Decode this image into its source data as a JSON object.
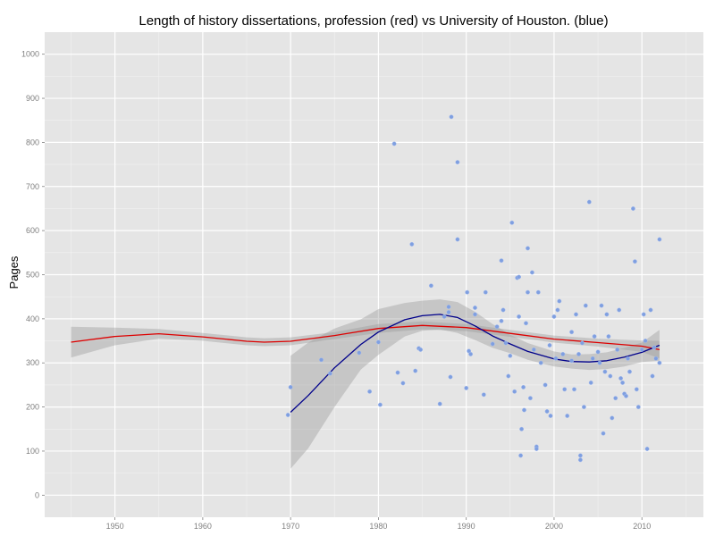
{
  "chart_data": {
    "type": "scatter",
    "title": "Length of history dissertations, profession (red) vs University of Houston. (blue)",
    "xlabel": "",
    "ylabel": "Pages",
    "xlim": [
      1942,
      2017
    ],
    "ylim": [
      -50,
      1050
    ],
    "x_ticks": [
      1950,
      1960,
      1970,
      1980,
      1990,
      2000,
      2010
    ],
    "y_ticks": [
      0,
      100,
      200,
      300,
      400,
      500,
      600,
      700,
      800,
      900,
      1000
    ],
    "grid": true,
    "legend": "none",
    "colors": {
      "panel": "#e5e5e5",
      "grid_major": "#ffffff",
      "grid_minor": "#f2f2f2",
      "points": "#7f9fe0",
      "band": "#999999",
      "profession_line": "#dd0000",
      "houston_line": "#00008b"
    },
    "series": [
      {
        "kind": "points",
        "x": [
          1969.7,
          1970.0,
          1973.5,
          1974.5,
          1977.8,
          1979.0,
          1980.0,
          1980.2,
          1981.8,
          1982.2,
          1982.8,
          1983.8,
          1984.2,
          1984.6,
          1984.8,
          1986.0,
          1987.0,
          1987.5,
          1988.0,
          1988.0,
          1988.2,
          1988.3,
          1989.0,
          1989.0,
          1990.0,
          1990.1,
          1990.3,
          1990.5,
          1991.0,
          1991.0,
          1992.0,
          1992.2,
          1993.0,
          1993.5,
          1994.0,
          1994.0,
          1994.2,
          1994.5,
          1994.8,
          1995.0,
          1995.2,
          1995.5,
          1995.8,
          1996.0,
          1996.0,
          1996.2,
          1996.3,
          1996.5,
          1996.6,
          1996.8,
          1997.0,
          1997.0,
          1997.3,
          1997.5,
          1997.7,
          1998.0,
          1998.0,
          1998.2,
          1998.5,
          1999.0,
          1999.2,
          1999.5,
          1999.6,
          2000.0,
          2000.2,
          2000.4,
          2000.6,
          2001.0,
          2001.2,
          2001.5,
          2002.0,
          2002.0,
          2002.3,
          2002.5,
          2002.8,
          2003.0,
          2003.0,
          2003.2,
          2003.4,
          2003.6,
          2004.0,
          2004.2,
          2004.4,
          2004.6,
          2005.0,
          2005.2,
          2005.4,
          2005.6,
          2005.8,
          2006.0,
          2006.2,
          2006.4,
          2006.6,
          2007.0,
          2007.2,
          2007.4,
          2007.6,
          2007.8,
          2008.0,
          2008.2,
          2008.4,
          2008.6,
          2009.0,
          2009.2,
          2009.4,
          2009.6,
          2010.0,
          2010.2,
          2010.4,
          2010.6,
          2011.0,
          2011.2,
          2011.4,
          2011.6,
          2012.0,
          2012.0
        ],
        "y": [
          182,
          245,
          307,
          276,
          323,
          235,
          347,
          205,
          797,
          278,
          254,
          569,
          282,
          333,
          330,
          475,
          207,
          405,
          427,
          415,
          268,
          858,
          755,
          580,
          243,
          460,
          327,
          320,
          425,
          410,
          228,
          460,
          343,
          382,
          395,
          532,
          420,
          345,
          270,
          316,
          618,
          235,
          493,
          405,
          495,
          90,
          150,
          245,
          193,
          390,
          560,
          460,
          220,
          505,
          330,
          110,
          105,
          460,
          300,
          250,
          190,
          340,
          180,
          405,
          310,
          420,
          440,
          320,
          240,
          180,
          305,
          370,
          240,
          410,
          320,
          80,
          90,
          345,
          200,
          430,
          665,
          255,
          310,
          360,
          325,
          300,
          430,
          140,
          280,
          410,
          360,
          270,
          175,
          220,
          330,
          420,
          265,
          255,
          230,
          225,
          310,
          280,
          650,
          530,
          240,
          200,
          330,
          410,
          350,
          105,
          420,
          270,
          335,
          310,
          580,
          300
        ],
        "color": "#7f9fe0"
      },
      {
        "kind": "smooth",
        "x": [
          1945,
          1950,
          1955,
          1960,
          1965,
          1967,
          1970,
          1975,
          1980,
          1985,
          1990,
          1995,
          2000,
          2005,
          2010,
          2012
        ],
        "y": [
          347,
          360,
          366,
          359,
          349,
          347,
          349,
          362,
          378,
          385,
          380,
          367,
          354,
          346,
          338,
          330
        ],
        "ci_low": [
          312,
          340,
          355,
          350,
          340,
          338,
          340,
          354,
          368,
          376,
          372,
          359,
          346,
          337,
          325,
          310
        ],
        "ci_high": [
          382,
          380,
          377,
          368,
          358,
          356,
          358,
          370,
          388,
          394,
          388,
          375,
          362,
          355,
          351,
          350
        ],
        "color": "#dd0000"
      },
      {
        "kind": "smooth",
        "x": [
          1970,
          1972,
          1975,
          1978,
          1980,
          1983,
          1985,
          1987,
          1989,
          1991,
          1993,
          1995,
          1997,
          2000,
          2002,
          2004,
          2006,
          2008,
          2010,
          2012
        ],
        "y": [
          188,
          226,
          289,
          342,
          370,
          398,
          407,
          410,
          403,
          384,
          361,
          343,
          326,
          309,
          303,
          302,
          305,
          313,
          324,
          340
        ],
        "ci_low": [
          60,
          106,
          200,
          285,
          318,
          360,
          373,
          376,
          368,
          352,
          334,
          322,
          307,
          292,
          287,
          284,
          286,
          292,
          302,
          305
        ],
        "ci_high": [
          316,
          346,
          378,
          399,
          422,
          436,
          441,
          444,
          438,
          416,
          388,
          364,
          345,
          326,
          319,
          320,
          324,
          334,
          346,
          375
        ],
        "color": "#00008b"
      }
    ]
  }
}
